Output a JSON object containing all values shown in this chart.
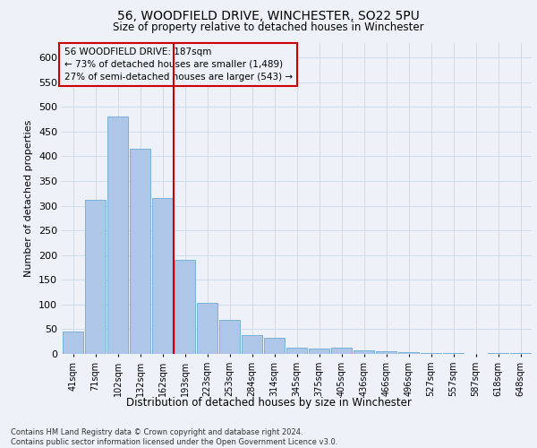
{
  "title_line1": "56, WOODFIELD DRIVE, WINCHESTER, SO22 5PU",
  "title_line2": "Size of property relative to detached houses in Winchester",
  "xlabel": "Distribution of detached houses by size in Winchester",
  "ylabel": "Number of detached properties",
  "footnote": "Contains HM Land Registry data © Crown copyright and database right 2024.\nContains public sector information licensed under the Open Government Licence v3.0.",
  "annotation_line1": "56 WOODFIELD DRIVE: 187sqm",
  "annotation_line2": "← 73% of detached houses are smaller (1,489)",
  "annotation_line3": "27% of semi-detached houses are larger (543) →",
  "bar_color": "#aec6e8",
  "bar_edge_color": "#6aaad4",
  "vline_color": "#cc0000",
  "annotation_box_color": "#cc0000",
  "grid_color": "#c8d8e8",
  "bg_color": "#eef2f8",
  "categories": [
    "41sqm",
    "71sqm",
    "102sqm",
    "132sqm",
    "162sqm",
    "193sqm",
    "223sqm",
    "253sqm",
    "284sqm",
    "314sqm",
    "345sqm",
    "375sqm",
    "405sqm",
    "436sqm",
    "466sqm",
    "496sqm",
    "527sqm",
    "557sqm",
    "587sqm",
    "618sqm",
    "648sqm"
  ],
  "values": [
    46,
    312,
    480,
    415,
    315,
    190,
    104,
    69,
    38,
    32,
    13,
    11,
    13,
    7,
    5,
    4,
    2,
    1,
    0,
    1,
    2
  ],
  "ylim": [
    0,
    630
  ],
  "yticks": [
    0,
    50,
    100,
    150,
    200,
    250,
    300,
    350,
    400,
    450,
    500,
    550,
    600
  ],
  "vline_x_index": 4.5,
  "figsize": [
    6.0,
    5.0
  ],
  "dpi": 100
}
